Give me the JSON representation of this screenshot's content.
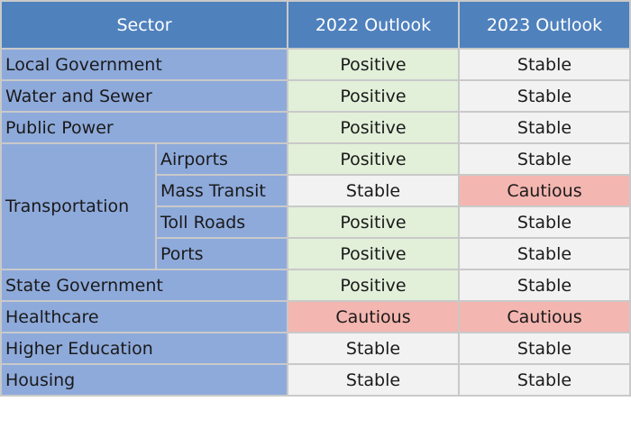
{
  "header": {
    "sector": "Sector",
    "outlook_2022": "2022 Outlook",
    "outlook_2023": "2023 Outlook"
  },
  "rows": [
    {
      "sector": "Local Government",
      "o2022": "Positive",
      "o2023": "Stable"
    },
    {
      "sector": "Water and Sewer",
      "o2022": "Positive",
      "o2023": "Stable"
    },
    {
      "sector": "Public Power",
      "o2022": "Positive",
      "o2023": "Stable"
    },
    {
      "sector": "Transportation",
      "sub": "Airports",
      "o2022": "Positive",
      "o2023": "Stable"
    },
    {
      "sub": "Mass Transit",
      "o2022": "Stable",
      "o2023": "Cautious"
    },
    {
      "sub": "Toll Roads",
      "o2022": "Positive",
      "o2023": "Stable"
    },
    {
      "sub": "Ports",
      "o2022": "Positive",
      "o2023": "Stable"
    },
    {
      "sector": "State Government",
      "o2022": "Positive",
      "o2023": "Stable"
    },
    {
      "sector": "Healthcare",
      "o2022": "Cautious",
      "o2023": "Cautious"
    },
    {
      "sector": "Higher Education",
      "o2022": "Stable",
      "o2023": "Stable"
    },
    {
      "sector": "Housing",
      "o2022": "Stable",
      "o2023": "Stable"
    }
  ],
  "colors": {
    "header": "#4f81bd",
    "sector": "#8eaadb",
    "Positive": "#e2efd9",
    "Stable": "#f2f2f2",
    "Cautious": "#f4b6b0"
  }
}
